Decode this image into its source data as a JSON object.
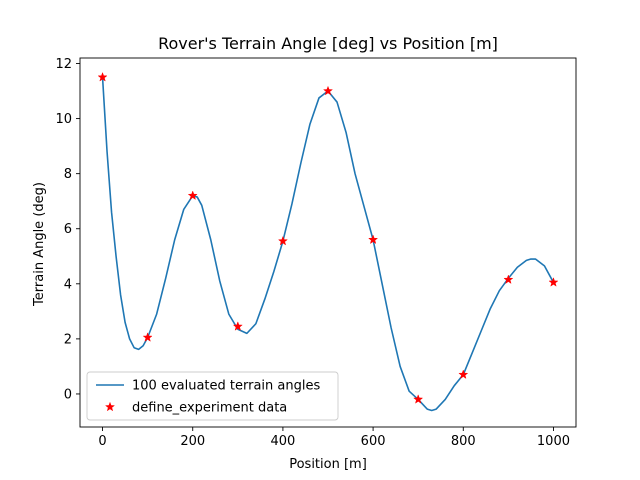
{
  "chart_data": {
    "type": "line",
    "title": "Rover's Terrain Angle [deg] vs Position [m]",
    "xlabel": "Position [m]",
    "ylabel": "Terrain Angle (deg)",
    "xlim": [
      -50,
      1050
    ],
    "ylim": [
      -1.2,
      12.2
    ],
    "xticks": [
      0,
      200,
      400,
      600,
      800,
      1000
    ],
    "yticks": [
      0,
      2,
      4,
      6,
      8,
      10,
      12
    ],
    "grid": false,
    "legend_position": "lower-left",
    "series": [
      {
        "name": "100 evaluated terrain angles",
        "kind": "line",
        "color": "#1f77b4",
        "x": [
          0,
          10,
          20,
          30,
          40,
          50,
          60,
          70,
          80,
          90,
          100,
          120,
          140,
          160,
          180,
          200,
          210,
          220,
          240,
          260,
          280,
          300,
          320,
          340,
          360,
          380,
          400,
          420,
          440,
          460,
          480,
          500,
          520,
          540,
          560,
          580,
          600,
          620,
          640,
          660,
          680,
          700,
          720,
          730,
          740,
          760,
          780,
          800,
          820,
          840,
          860,
          880,
          900,
          920,
          940,
          950,
          960,
          980,
          1000
        ],
        "y": [
          11.5,
          8.8,
          6.6,
          5.0,
          3.6,
          2.6,
          2.0,
          1.68,
          1.62,
          1.75,
          2.05,
          2.9,
          4.2,
          5.6,
          6.7,
          7.2,
          7.15,
          6.85,
          5.6,
          4.1,
          2.9,
          2.35,
          2.2,
          2.55,
          3.45,
          4.45,
          5.55,
          6.9,
          8.4,
          9.8,
          10.75,
          11.0,
          10.6,
          9.5,
          8.0,
          6.8,
          5.6,
          4.0,
          2.4,
          1.0,
          0.1,
          -0.2,
          -0.55,
          -0.6,
          -0.55,
          -0.2,
          0.3,
          0.7,
          1.5,
          2.3,
          3.1,
          3.75,
          4.2,
          4.6,
          4.85,
          4.9,
          4.9,
          4.65,
          4.05
        ]
      },
      {
        "name": "define_experiment data",
        "kind": "scatter",
        "marker": "star",
        "color": "#ff0000",
        "x": [
          0,
          100,
          200,
          300,
          400,
          500,
          600,
          700,
          800,
          900,
          1000
        ],
        "y": [
          11.5,
          2.05,
          7.2,
          2.45,
          5.55,
          11.0,
          5.6,
          -0.2,
          0.7,
          4.15,
          4.05
        ]
      }
    ]
  }
}
